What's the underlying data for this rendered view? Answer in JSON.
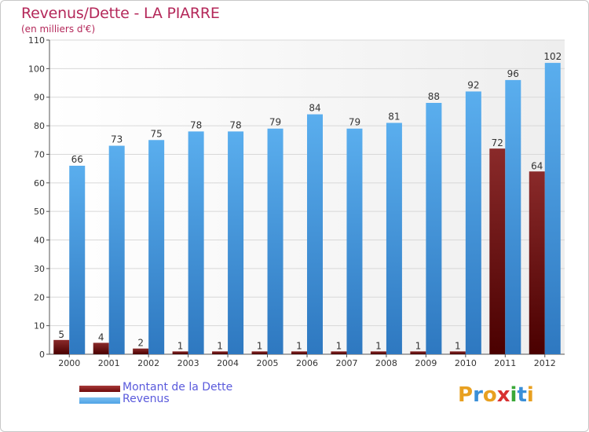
{
  "header": {
    "title": "Revenus/Dette - LA PIARRE",
    "subtitle": "(en milliers d'€)"
  },
  "colors": {
    "dette": "#6e0a0a",
    "revenus": "#4fa3e6",
    "title": "#b4285a",
    "legend_text": "#5a5adc"
  },
  "legend": {
    "items": [
      {
        "label": "Montant de la Dette",
        "color": "#6e0a0a"
      },
      {
        "label": "Revenus",
        "color": "#4fa3e6"
      }
    ]
  },
  "logo": {
    "letters": [
      "P",
      "r",
      "o",
      "x",
      "i",
      "t",
      "i"
    ],
    "colors": [
      "#e8a020",
      "#3a8fd8",
      "#e8a020",
      "#d83030",
      "#3aa838",
      "#3a8fd8",
      "#e8a020"
    ]
  },
  "chart_data": {
    "type": "bar",
    "title": "Revenus/Dette - LA PIARRE",
    "subtitle": "(en milliers d'€)",
    "categories": [
      "2000",
      "2001",
      "2002",
      "2003",
      "2004",
      "2005",
      "2006",
      "2007",
      "2008",
      "2009",
      "2010",
      "2011",
      "2012"
    ],
    "series": [
      {
        "name": "Montant de la Dette",
        "values": [
          5,
          4,
          2,
          1,
          1,
          1,
          1,
          1,
          1,
          1,
          1,
          72,
          64
        ]
      },
      {
        "name": "Revenus",
        "values": [
          66,
          73,
          75,
          78,
          78,
          79,
          84,
          79,
          81,
          88,
          92,
          96,
          102
        ]
      }
    ],
    "ylim": [
      0,
      110
    ],
    "yticks": [
      0,
      10,
      20,
      30,
      40,
      50,
      60,
      70,
      80,
      90,
      100,
      110
    ],
    "grid": true,
    "legend_position": "bottom-left"
  }
}
